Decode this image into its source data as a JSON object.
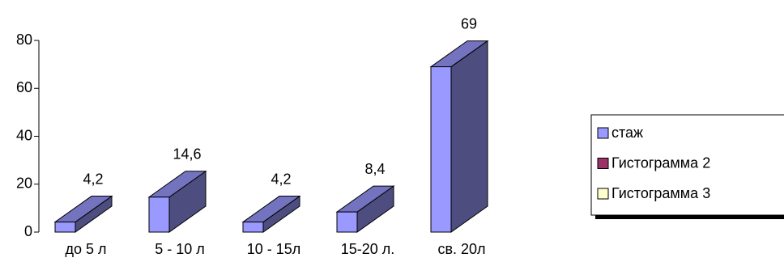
{
  "chart_data": {
    "type": "bar3d",
    "categories": [
      "до 5 л",
      "5 - 10 л",
      "10 - 15л",
      "15-20 л.",
      "св. 20л"
    ],
    "series": [
      {
        "name": "стаж",
        "color": "#9999ff",
        "values": [
          4.2,
          14.6,
          4.2,
          8.4,
          69
        ],
        "value_labels": [
          "4,2",
          "14,6",
          "4,2",
          "8,4",
          "69"
        ]
      },
      {
        "name": "Гистограмма 2",
        "color": "#993366",
        "values": [
          null,
          null,
          null,
          null,
          null
        ]
      },
      {
        "name": "Гистограмма 3",
        "color": "#ffffcc",
        "values": [
          null,
          null,
          null,
          null,
          null
        ]
      }
    ],
    "ylim": [
      0,
      80
    ],
    "yticks": [
      0,
      20,
      40,
      60,
      80
    ],
    "legend": "right"
  }
}
